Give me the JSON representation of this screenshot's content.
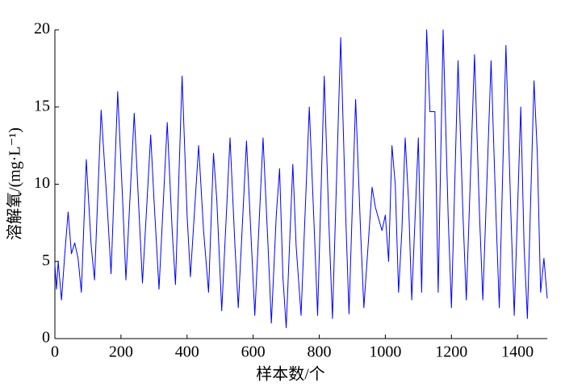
{
  "chart_data": {
    "type": "line",
    "x_label": "样本数/个",
    "y_label": "溶解氧/(mg·L⁻¹)",
    "xlim": [
      0,
      1490
    ],
    "ylim": [
      0,
      20
    ],
    "xticks": [
      0,
      200,
      400,
      600,
      800,
      1000,
      1200,
      1400
    ],
    "yticks": [
      0,
      5,
      10,
      15,
      20
    ],
    "grid": false,
    "x": [
      0,
      5,
      10,
      20,
      30,
      40,
      50,
      60,
      70,
      80,
      95,
      110,
      120,
      140,
      160,
      170,
      190,
      205,
      215,
      240,
      255,
      265,
      290,
      300,
      315,
      340,
      355,
      365,
      385,
      400,
      410,
      435,
      450,
      465,
      480,
      490,
      505,
      530,
      545,
      555,
      580,
      595,
      605,
      630,
      645,
      655,
      670,
      680,
      690,
      700,
      720,
      730,
      745,
      770,
      785,
      795,
      815,
      830,
      840,
      865,
      880,
      890,
      910,
      925,
      935,
      960,
      970,
      990,
      1000,
      1010,
      1020,
      1030,
      1040,
      1050,
      1060,
      1070,
      1080,
      1100,
      1110,
      1125,
      1135,
      1150,
      1160,
      1175,
      1190,
      1200,
      1220,
      1235,
      1245,
      1270,
      1285,
      1295,
      1320,
      1335,
      1345,
      1365,
      1380,
      1390,
      1410,
      1420,
      1430,
      1450,
      1460,
      1470,
      1480,
      1490
    ],
    "series": [
      {
        "color": "#0000ff",
        "values": [
          4.8,
          3.2,
          5.0,
          2.5,
          5.5,
          8.2,
          5.5,
          6.2,
          5.2,
          3.0,
          11.6,
          6.0,
          3.8,
          14.8,
          8,
          4.2,
          16.0,
          9,
          3.8,
          14.6,
          8,
          3.6,
          13.2,
          9,
          3.2,
          14.0,
          7,
          3.5,
          17.0,
          8,
          4.0,
          12.5,
          7,
          3.0,
          12.0,
          9,
          1.8,
          13.0,
          6,
          2.0,
          12.8,
          6,
          1.5,
          13.0,
          6,
          1.0,
          8,
          11.0,
          4,
          0.7,
          11.3,
          6,
          1.5,
          15.0,
          7,
          1.5,
          17.0,
          7,
          1.3,
          19.5,
          8,
          1.6,
          15.5,
          7,
          2.0,
          9.8,
          8.5,
          7.0,
          8.0,
          5.0,
          12.5,
          10,
          3.0,
          7,
          13.0,
          9,
          2.5,
          13,
          3,
          20.0,
          14.7,
          14.7,
          3.0,
          20.0,
          8,
          2.0,
          18.0,
          8,
          2.5,
          18.4,
          8,
          2.5,
          18.0,
          8,
          2.0,
          19.0,
          8,
          1.5,
          15.0,
          6,
          1.3,
          16.7,
          12,
          3,
          5.2,
          2.6
        ]
      }
    ]
  }
}
